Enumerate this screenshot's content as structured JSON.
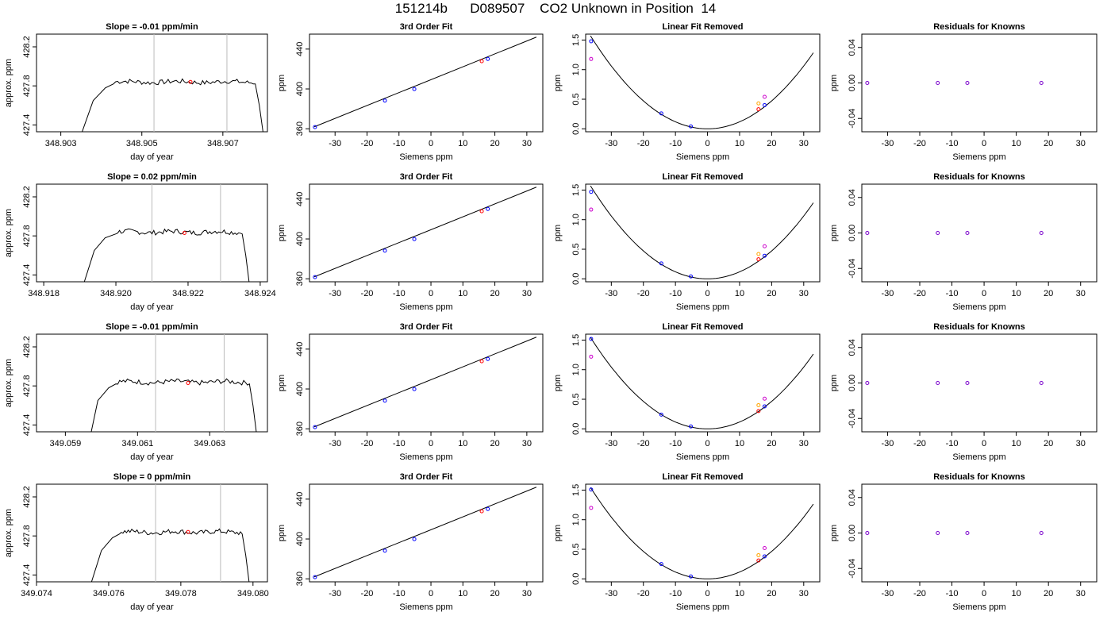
{
  "page_title": "151214b      D089507    CO2 Unknown in Position  14",
  "colors": {
    "line": "#000000",
    "gray_marker": "#bbbbbb",
    "known": "#0000ff",
    "unknown": "#ff0000",
    "magenta": "#cc00cc",
    "orange": "#ffa500"
  },
  "chart_data": [
    {
      "panel": "row1-time",
      "type": "line",
      "title": "Slope =  -0.01  ppm/min",
      "xlabel": "day of year",
      "ylabel": "approx. ppm",
      "xlim": [
        348.9024,
        348.9081
      ],
      "ylim": [
        427.33,
        428.33
      ],
      "xticks": [
        "348.903",
        "348.905",
        "348.907"
      ],
      "xtick_values": [
        348.903,
        348.905,
        348.907
      ],
      "yticks": [
        "427.4",
        "427.8",
        "428.2"
      ],
      "ytick_values": [
        427.4,
        427.8,
        428.2
      ],
      "markers_x": [
        348.9053,
        348.9071
      ],
      "red_point": {
        "x": 348.9062,
        "y": 427.84
      },
      "rise": {
        "x": [
          348.9035,
          348.9038,
          348.9041,
          348.9043
        ],
        "y": [
          427.3,
          427.65,
          427.78,
          427.82
        ]
      },
      "plateau_x": [
        348.9043,
        348.9078
      ],
      "plateau_y": 427.84,
      "fall": {
        "x": [
          348.9078,
          348.9079,
          348.908
        ],
        "y": [
          427.82,
          427.6,
          427.3
        ]
      }
    },
    {
      "panel": "row1-fit",
      "type": "scatter",
      "title": "3rd Order Fit",
      "xlabel": "Siemens ppm",
      "ylabel": "ppm",
      "xlim": [
        -38,
        35
      ],
      "ylim": [
        357,
        455
      ],
      "xticks": [
        -30,
        -20,
        -10,
        0,
        10,
        20,
        30
      ],
      "yticks": [
        360,
        400,
        440
      ],
      "fit_line": {
        "x": [
          -36.5,
          33
        ],
        "y": [
          362,
          452
        ]
      },
      "knowns": [
        {
          "x": -36.3,
          "y": 361.7
        },
        {
          "x": -14.4,
          "y": 388.3
        },
        {
          "x": -5.2,
          "y": 399.8
        },
        {
          "x": 17.8,
          "y": 430.1
        }
      ],
      "unknown": {
        "x": 15.9,
        "y": 427.8
      }
    },
    {
      "panel": "row1-linear",
      "type": "scatter",
      "title": "Linear Fit Removed",
      "xlabel": "Siemens ppm",
      "ylabel": "ppm",
      "xlim": [
        -38,
        35
      ],
      "ylim": [
        -0.05,
        1.6
      ],
      "xticks": [
        -30,
        -20,
        -10,
        0,
        10,
        20,
        30
      ],
      "yticks": [
        "0.0",
        "0.5",
        "1.0",
        "1.5"
      ],
      "ytick_values": [
        0,
        0.5,
        1,
        1.5
      ],
      "curve_coef": 0.00118,
      "curve_xrange": [
        -36.5,
        33
      ],
      "knowns": [
        {
          "x": -36.3,
          "y": 1.48
        },
        {
          "x": -14.4,
          "y": 0.26
        },
        {
          "x": -5.2,
          "y": 0.04
        },
        {
          "x": 17.8,
          "y": 0.4
        }
      ],
      "unknown": {
        "x": 15.9,
        "y": 0.33
      },
      "magenta": [
        {
          "x": -36.3,
          "y": 1.18
        },
        {
          "x": 17.8,
          "y": 0.54
        }
      ],
      "orange": [
        {
          "x": 15.9,
          "y": 0.43
        }
      ]
    },
    {
      "panel": "row1-residuals",
      "type": "scatter",
      "title": "Residuals for Knowns",
      "xlabel": "Siemens ppm",
      "ylabel": "ppm",
      "xlim": [
        -38,
        35
      ],
      "ylim": [
        -0.055,
        0.055
      ],
      "xticks": [
        -30,
        -20,
        -10,
        0,
        10,
        20,
        30
      ],
      "yticks": [
        "-0.04",
        "0.00",
        "0.04"
      ],
      "ytick_values": [
        -0.04,
        0,
        0.04
      ],
      "points": [
        {
          "x": -36.3,
          "y": 0
        },
        {
          "x": -14.4,
          "y": 0
        },
        {
          "x": -5.2,
          "y": 0
        },
        {
          "x": 17.8,
          "y": 0
        }
      ]
    },
    {
      "panel": "row2-time",
      "type": "line",
      "title": "Slope =  0.02  ppm/min",
      "xlabel": "day of year",
      "ylabel": "approx. ppm",
      "xlim": [
        348.9178,
        348.9242
      ],
      "ylim": [
        427.33,
        428.33
      ],
      "xticks": [
        "348.918",
        "348.920",
        "348.922",
        "348.924"
      ],
      "xtick_values": [
        348.918,
        348.92,
        348.922,
        348.924
      ],
      "yticks": [
        "427.4",
        "427.8",
        "428.2"
      ],
      "ytick_values": [
        427.4,
        427.8,
        428.2
      ],
      "markers_x": [
        348.921,
        348.9229
      ],
      "red_point": {
        "x": 348.9219,
        "y": 427.83
      },
      "rise": {
        "x": [
          348.9191,
          348.9194,
          348.9197,
          348.92
        ],
        "y": [
          427.3,
          427.65,
          427.78,
          427.82
        ]
      },
      "plateau_x": [
        348.92,
        348.9235
      ],
      "plateau_y": 427.84,
      "fall": {
        "x": [
          348.9235,
          348.9236,
          348.9237
        ],
        "y": [
          427.82,
          427.6,
          427.3
        ]
      }
    },
    {
      "panel": "row2-fit",
      "type": "scatter",
      "title": "3rd Order Fit",
      "xlabel": "Siemens ppm",
      "ylabel": "ppm",
      "xlim": [
        -38,
        35
      ],
      "ylim": [
        357,
        455
      ],
      "xticks": [
        -30,
        -20,
        -10,
        0,
        10,
        20,
        30
      ],
      "yticks": [
        360,
        400,
        440
      ],
      "fit_line": {
        "x": [
          -36.5,
          33
        ],
        "y": [
          362,
          452
        ]
      },
      "knowns": [
        {
          "x": -36.3,
          "y": 361.7
        },
        {
          "x": -14.4,
          "y": 388.3
        },
        {
          "x": -5.2,
          "y": 399.8
        },
        {
          "x": 17.8,
          "y": 430.1
        }
      ],
      "unknown": {
        "x": 15.9,
        "y": 427.8
      }
    },
    {
      "panel": "row2-linear",
      "type": "scatter",
      "title": "Linear Fit Removed",
      "xlabel": "Siemens ppm",
      "ylabel": "ppm",
      "xlim": [
        -38,
        35
      ],
      "ylim": [
        -0.05,
        1.6
      ],
      "xticks": [
        -30,
        -20,
        -10,
        0,
        10,
        20,
        30
      ],
      "yticks": [
        "0.0",
        "0.5",
        "1.0",
        "1.5"
      ],
      "ytick_values": [
        0,
        0.5,
        1,
        1.5
      ],
      "curve_coef": 0.00118,
      "curve_xrange": [
        -36.5,
        33
      ],
      "knowns": [
        {
          "x": -36.3,
          "y": 1.47
        },
        {
          "x": -14.4,
          "y": 0.26
        },
        {
          "x": -5.2,
          "y": 0.04
        },
        {
          "x": 17.8,
          "y": 0.39
        }
      ],
      "unknown": {
        "x": 15.9,
        "y": 0.33
      },
      "magenta": [
        {
          "x": -36.3,
          "y": 1.17
        },
        {
          "x": 17.8,
          "y": 0.55
        }
      ],
      "orange": [
        {
          "x": 15.9,
          "y": 0.42
        }
      ]
    },
    {
      "panel": "row2-residuals",
      "type": "scatter",
      "title": "Residuals for Knowns",
      "xlabel": "Siemens ppm",
      "ylabel": "ppm",
      "xlim": [
        -38,
        35
      ],
      "ylim": [
        -0.055,
        0.055
      ],
      "xticks": [
        -30,
        -20,
        -10,
        0,
        10,
        20,
        30
      ],
      "yticks": [
        "-0.04",
        "0.00",
        "0.04"
      ],
      "ytick_values": [
        -0.04,
        0,
        0.04
      ],
      "points": [
        {
          "x": -36.3,
          "y": 0
        },
        {
          "x": -14.4,
          "y": 0
        },
        {
          "x": -5.2,
          "y": 0
        },
        {
          "x": 17.8,
          "y": 0
        }
      ]
    },
    {
      "panel": "row3-time",
      "type": "line",
      "title": "Slope =  -0.01  ppm/min",
      "xlabel": "day of year",
      "ylabel": "approx. ppm",
      "xlim": [
        349.0582,
        349.0646
      ],
      "ylim": [
        427.33,
        428.33
      ],
      "xticks": [
        "349.059",
        "349.061",
        "349.063"
      ],
      "xtick_values": [
        349.059,
        349.061,
        349.063
      ],
      "yticks": [
        "427.4",
        "427.8",
        "428.2"
      ],
      "ytick_values": [
        427.4,
        427.8,
        428.2
      ],
      "markers_x": [
        349.0615,
        349.0634
      ],
      "red_point": {
        "x": 349.0624,
        "y": 427.83
      },
      "rise": {
        "x": [
          349.0597,
          349.0599,
          349.0602,
          349.0604
        ],
        "y": [
          427.3,
          427.65,
          427.78,
          427.82
        ]
      },
      "plateau_x": [
        349.0604,
        349.0641
      ],
      "plateau_y": 427.84,
      "fall": {
        "x": [
          349.0641,
          349.0642,
          349.0643
        ],
        "y": [
          427.82,
          427.6,
          427.3
        ]
      }
    },
    {
      "panel": "row3-fit",
      "type": "scatter",
      "title": "3rd Order Fit",
      "xlabel": "Siemens ppm",
      "ylabel": "ppm",
      "xlim": [
        -38,
        35
      ],
      "ylim": [
        357,
        455
      ],
      "xticks": [
        -30,
        -20,
        -10,
        0,
        10,
        20,
        30
      ],
      "yticks": [
        360,
        400,
        440
      ],
      "fit_line": {
        "x": [
          -36.5,
          33
        ],
        "y": [
          362,
          452
        ]
      },
      "knowns": [
        {
          "x": -36.3,
          "y": 361.7
        },
        {
          "x": -14.4,
          "y": 388.3
        },
        {
          "x": -5.2,
          "y": 399.8
        },
        {
          "x": 17.8,
          "y": 430.1
        }
      ],
      "unknown": {
        "x": 15.9,
        "y": 427.8
      }
    },
    {
      "panel": "row3-linear",
      "type": "scatter",
      "title": "Linear Fit Removed",
      "xlabel": "Siemens ppm",
      "ylabel": "ppm",
      "xlim": [
        -38,
        35
      ],
      "ylim": [
        -0.05,
        1.6
      ],
      "xticks": [
        -30,
        -20,
        -10,
        0,
        10,
        20,
        30
      ],
      "yticks": [
        "0.0",
        "0.5",
        "1.0",
        "1.5"
      ],
      "ytick_values": [
        0,
        0.5,
        1,
        1.5
      ],
      "curve_coef": 0.00116,
      "curve_xrange": [
        -36.5,
        33
      ],
      "knowns": [
        {
          "x": -36.3,
          "y": 1.52
        },
        {
          "x": -14.4,
          "y": 0.24
        },
        {
          "x": -5.2,
          "y": 0.04
        },
        {
          "x": 17.8,
          "y": 0.38
        }
      ],
      "unknown": {
        "x": 15.9,
        "y": 0.3
      },
      "magenta": [
        {
          "x": -36.3,
          "y": 1.22
        },
        {
          "x": 17.8,
          "y": 0.51
        }
      ],
      "orange": [
        {
          "x": 15.9,
          "y": 0.4
        }
      ]
    },
    {
      "panel": "row3-residuals",
      "type": "scatter",
      "title": "Residuals for Knowns",
      "xlabel": "Siemens ppm",
      "ylabel": "ppm",
      "xlim": [
        -38,
        35
      ],
      "ylim": [
        -0.055,
        0.055
      ],
      "xticks": [
        -30,
        -20,
        -10,
        0,
        10,
        20,
        30
      ],
      "yticks": [
        "-0.04",
        "0.00",
        "0.04"
      ],
      "ytick_values": [
        -0.04,
        0,
        0.04
      ],
      "points": [
        {
          "x": -36.3,
          "y": 0
        },
        {
          "x": -14.4,
          "y": 0
        },
        {
          "x": -5.2,
          "y": 0
        },
        {
          "x": 17.8,
          "y": 0
        }
      ]
    },
    {
      "panel": "row4-time",
      "type": "line",
      "title": "Slope =  0  ppm/min",
      "xlabel": "day of year",
      "ylabel": "approx. ppm",
      "xlim": [
        349.074,
        349.0804
      ],
      "ylim": [
        427.33,
        428.33
      ],
      "xticks": [
        "349.074",
        "349.076",
        "349.078",
        "349.080"
      ],
      "xtick_values": [
        349.074,
        349.076,
        349.078,
        349.08
      ],
      "yticks": [
        "427.4",
        "427.8",
        "428.2"
      ],
      "ytick_values": [
        427.4,
        427.8,
        428.2
      ],
      "markers_x": [
        349.0773,
        349.0791
      ],
      "red_point": {
        "x": 349.0782,
        "y": 427.84
      },
      "rise": {
        "x": [
          349.0755,
          349.0758,
          349.0761,
          349.0763
        ],
        "y": [
          427.3,
          427.65,
          427.78,
          427.82
        ]
      },
      "plateau_x": [
        349.0763,
        349.0797
      ],
      "plateau_y": 427.84,
      "fall": {
        "x": [
          349.0797,
          349.0798,
          349.0799
        ],
        "y": [
          427.82,
          427.6,
          427.3
        ]
      }
    },
    {
      "panel": "row4-fit",
      "type": "scatter",
      "title": "3rd Order Fit",
      "xlabel": "Siemens ppm",
      "ylabel": "ppm",
      "xlim": [
        -38,
        35
      ],
      "ylim": [
        357,
        455
      ],
      "xticks": [
        -30,
        -20,
        -10,
        0,
        10,
        20,
        30
      ],
      "yticks": [
        360,
        400,
        440
      ],
      "fit_line": {
        "x": [
          -36.5,
          33
        ],
        "y": [
          362,
          452
        ]
      },
      "knowns": [
        {
          "x": -36.3,
          "y": 361.7
        },
        {
          "x": -14.4,
          "y": 388.3
        },
        {
          "x": -5.2,
          "y": 399.8
        },
        {
          "x": 17.8,
          "y": 430.1
        }
      ],
      "unknown": {
        "x": 15.9,
        "y": 427.8
      }
    },
    {
      "panel": "row4-linear",
      "type": "scatter",
      "title": "Linear Fit Removed",
      "xlabel": "Siemens ppm",
      "ylabel": "ppm",
      "xlim": [
        -38,
        35
      ],
      "ylim": [
        -0.05,
        1.6
      ],
      "xticks": [
        -30,
        -20,
        -10,
        0,
        10,
        20,
        30
      ],
      "yticks": [
        "0.0",
        "0.5",
        "1.0",
        "1.5"
      ],
      "ytick_values": [
        0,
        0.5,
        1,
        1.5
      ],
      "curve_coef": 0.00116,
      "curve_xrange": [
        -36.5,
        33
      ],
      "knowns": [
        {
          "x": -36.3,
          "y": 1.51
        },
        {
          "x": -14.4,
          "y": 0.25
        },
        {
          "x": -5.2,
          "y": 0.04
        },
        {
          "x": 17.8,
          "y": 0.38
        }
      ],
      "unknown": {
        "x": 15.9,
        "y": 0.31
      },
      "magenta": [
        {
          "x": -36.3,
          "y": 1.2
        },
        {
          "x": 17.8,
          "y": 0.52
        }
      ],
      "orange": [
        {
          "x": 15.9,
          "y": 0.4
        }
      ]
    },
    {
      "panel": "row4-residuals",
      "type": "scatter",
      "title": "Residuals for Knowns",
      "xlabel": "Siemens ppm",
      "ylabel": "ppm",
      "xlim": [
        -38,
        35
      ],
      "ylim": [
        -0.055,
        0.055
      ],
      "xticks": [
        -30,
        -20,
        -10,
        0,
        10,
        20,
        30
      ],
      "yticks": [
        "-0.04",
        "0.00",
        "0.04"
      ],
      "ytick_values": [
        -0.04,
        0,
        0.04
      ],
      "points": [
        {
          "x": -36.3,
          "y": 0
        },
        {
          "x": -14.4,
          "y": 0
        },
        {
          "x": -5.2,
          "y": 0
        },
        {
          "x": 17.8,
          "y": 0
        }
      ]
    }
  ]
}
